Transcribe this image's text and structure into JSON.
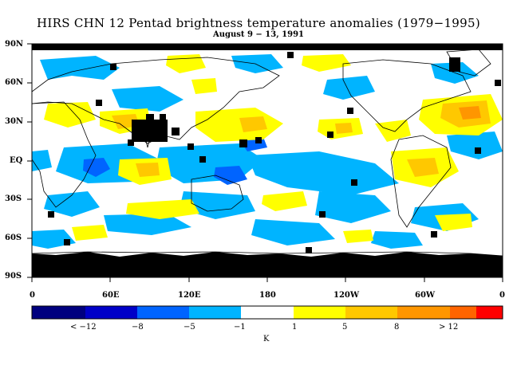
{
  "title": "HIRS CHN 12 Pentad brightness temperature anomalies (1979−1995)",
  "subtitle": "August 9 − 13, 1991",
  "lat_labels": [
    "90N",
    "60N",
    "30N",
    "EQ",
    "30S",
    "60S",
    "90S"
  ],
  "lon_labels": [
    "0",
    "60E",
    "120E",
    "180",
    "120W",
    "60W",
    "0"
  ],
  "colorbar": {
    "colors": [
      "#00007f",
      "#0000c8",
      "#0064ff",
      "#00b4ff",
      "#ffffff",
      "#ffff00",
      "#ffc800",
      "#ff9600",
      "#ff6400",
      "#ff0000"
    ],
    "labels": [
      "< −12",
      "−8",
      "−5",
      "−1",
      "1",
      "5",
      "8",
      "> 12"
    ],
    "unit": "K"
  },
  "map_colors": {
    "missing": "#000000",
    "cold_light": "#00b4ff",
    "cold_mid": "#0064ff",
    "warm_light": "#ffff00",
    "warm_mid": "#ffc800",
    "warm_strong": "#ff9600"
  }
}
